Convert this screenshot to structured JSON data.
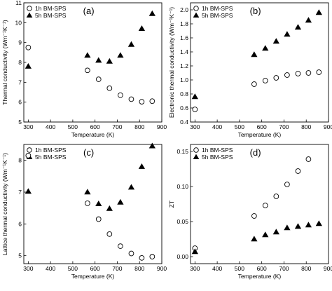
{
  "chart_data": [
    {
      "type": "scatter",
      "panel_label": "(a)",
      "xlabel": "Temperature (K)",
      "ylabel": "Thermal conductivity (Wm⁻¹K⁻¹)",
      "xlim": [
        280,
        900
      ],
      "ylim": [
        5,
        11
      ],
      "xticks": [
        300,
        400,
        500,
        600,
        700,
        800,
        900
      ],
      "yticks": [
        5,
        6,
        7,
        8,
        9,
        10,
        11
      ],
      "ytick_labels": [
        "5",
        "6",
        "7",
        "8",
        "9",
        "10",
        "11"
      ],
      "legend_position": "top-left",
      "series": [
        {
          "name": "1h BM-SPS",
          "marker": "open-circle",
          "x": [
            300,
            566,
            616,
            665,
            714,
            763,
            810,
            857
          ],
          "y": [
            8.75,
            7.6,
            7.15,
            6.7,
            6.35,
            6.15,
            6.02,
            6.05
          ]
        },
        {
          "name": "5h BM-SPS",
          "marker": "filled-triangle",
          "x": [
            300,
            566,
            616,
            665,
            714,
            763,
            810,
            857
          ],
          "y": [
            7.8,
            8.35,
            8.1,
            8.05,
            8.35,
            8.9,
            9.7,
            10.45
          ]
        }
      ]
    },
    {
      "type": "scatter",
      "panel_label": "(b)",
      "xlabel": "Temperature (K)",
      "ylabel": "Electronic thermal conductivity (Wm⁻¹K⁻¹)",
      "xlim": [
        280,
        900
      ],
      "ylim": [
        0.4,
        2.1
      ],
      "xticks": [
        300,
        400,
        500,
        600,
        700,
        800,
        900
      ],
      "yticks": [
        0.4,
        0.6,
        0.8,
        1.0,
        1.2,
        1.4,
        1.6,
        1.8,
        2.0
      ],
      "ytick_labels": [
        "0.4",
        "0.6",
        "0.8",
        "1.0",
        "1.2",
        "1.4",
        "1.6",
        "1.8",
        "2.0"
      ],
      "legend_position": "top-left",
      "series": [
        {
          "name": "1h BM-SPS",
          "marker": "open-circle",
          "x": [
            300,
            566,
            616,
            665,
            714,
            763,
            810,
            857
          ],
          "y": [
            0.58,
            0.94,
            0.99,
            1.03,
            1.07,
            1.09,
            1.1,
            1.11
          ]
        },
        {
          "name": "5h BM-SPS",
          "marker": "filled-triangle",
          "x": [
            300,
            566,
            616,
            665,
            714,
            763,
            810,
            857
          ],
          "y": [
            0.76,
            1.36,
            1.45,
            1.55,
            1.65,
            1.75,
            1.85,
            1.96
          ]
        }
      ]
    },
    {
      "type": "scatter",
      "panel_label": "(c)",
      "xlabel": "Temperature (K)",
      "ylabel": "Lattice thermal conductivity (Wm⁻¹K⁻¹)",
      "xlim": [
        280,
        900
      ],
      "ylim": [
        4.75,
        8.5
      ],
      "xticks": [
        300,
        400,
        500,
        600,
        700,
        800,
        900
      ],
      "yticks": [
        5,
        6,
        7,
        8
      ],
      "ytick_labels": [
        "5",
        "6",
        "7",
        "8"
      ],
      "legend_position": "top-left",
      "series": [
        {
          "name": "1h BM-SPS",
          "marker": "open-circle",
          "x": [
            300,
            566,
            616,
            665,
            714,
            763,
            810,
            857
          ],
          "y": [
            8.15,
            6.65,
            6.15,
            5.68,
            5.3,
            5.07,
            4.93,
            4.97
          ]
        },
        {
          "name": "5h BM-SPS",
          "marker": "filled-triangle",
          "x": [
            300,
            566,
            616,
            665,
            714,
            763,
            810,
            857
          ],
          "y": [
            7.02,
            7.0,
            6.63,
            6.48,
            6.68,
            7.15,
            7.8,
            8.45
          ]
        }
      ]
    },
    {
      "type": "scatter",
      "panel_label": "(d)",
      "xlabel": "Temperature (K)",
      "ylabel": "ZT",
      "xlim": [
        280,
        900
      ],
      "ylim": [
        -0.01,
        0.16
      ],
      "xticks": [
        300,
        400,
        500,
        600,
        700,
        800,
        900
      ],
      "yticks": [
        0.0,
        0.05,
        0.1,
        0.15
      ],
      "ytick_labels": [
        "0.00",
        "0.05",
        "0.10",
        "0.15"
      ],
      "legend_position": "top-left",
      "series": [
        {
          "name": "1h BM-SPS",
          "marker": "open-circle",
          "x": [
            300,
            566,
            616,
            665,
            714,
            763,
            810
          ],
          "y": [
            0.012,
            0.058,
            0.073,
            0.086,
            0.103,
            0.122,
            0.139
          ]
        },
        {
          "name": "5h BM-SPS",
          "marker": "filled-triangle",
          "x": [
            300,
            566,
            616,
            665,
            714,
            763,
            810,
            857
          ],
          "y": [
            0.007,
            0.025,
            0.031,
            0.035,
            0.041,
            0.043,
            0.045,
            0.047
          ]
        }
      ]
    }
  ]
}
